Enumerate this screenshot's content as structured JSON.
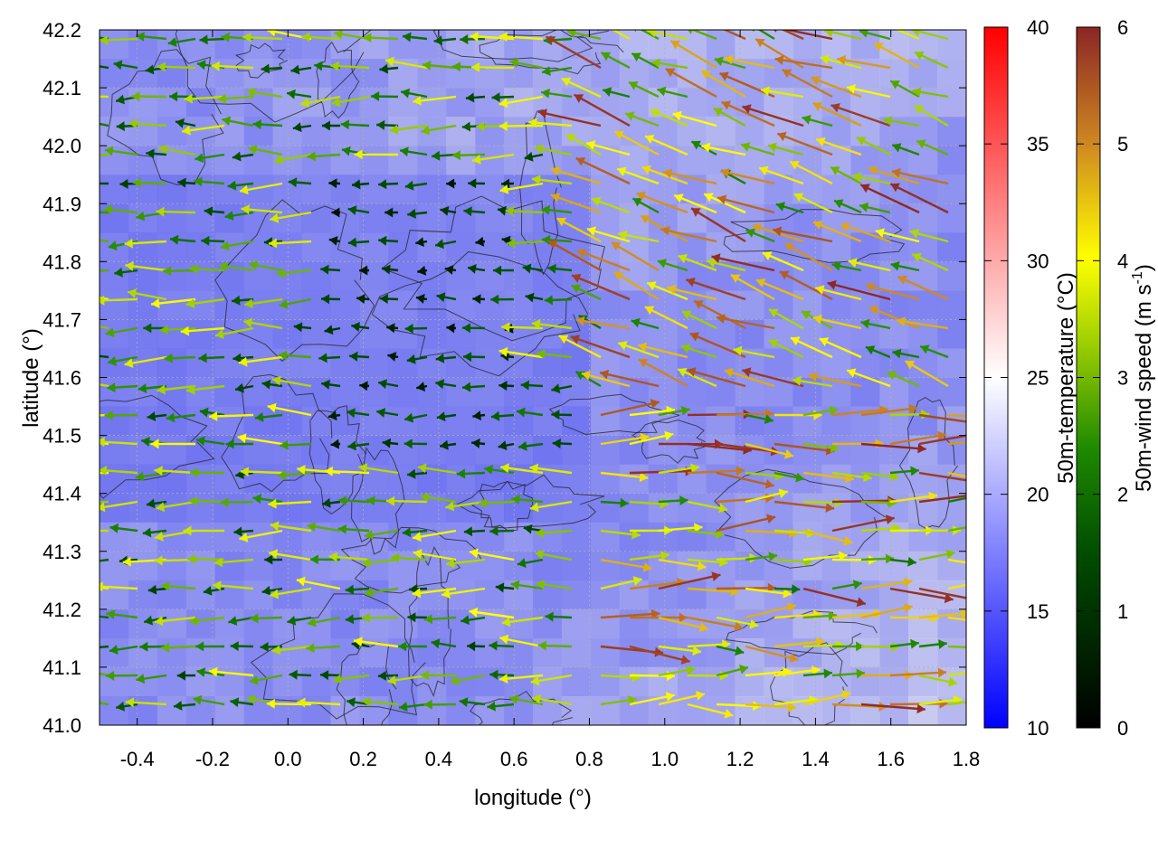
{
  "chart_data": {
    "type": "heatmap",
    "overlays": [
      "vector-field",
      "contour-lines"
    ],
    "xlabel": "longitude (°)",
    "ylabel": "latitude (°)",
    "xlim": [
      -0.5,
      1.8
    ],
    "ylim": [
      41.0,
      42.2
    ],
    "xticks": [
      "-0.4",
      "-0.2",
      "0.0",
      "0.2",
      "0.4",
      "0.6",
      "0.8",
      "1.0",
      "1.2",
      "1.4",
      "1.6",
      "1.8"
    ],
    "xtick_values": [
      -0.4,
      -0.2,
      0.0,
      0.2,
      0.4,
      0.6,
      0.8,
      1.0,
      1.2,
      1.4,
      1.6,
      1.8
    ],
    "yticks": [
      "41.0",
      "41.1",
      "41.2",
      "41.3",
      "41.4",
      "41.5",
      "41.6",
      "41.7",
      "41.8",
      "41.9",
      "42.0",
      "42.1",
      "42.2"
    ],
    "ytick_values": [
      41.0,
      41.1,
      41.2,
      41.3,
      41.4,
      41.5,
      41.6,
      41.7,
      41.8,
      41.9,
      42.0,
      42.1,
      42.2
    ],
    "grid": true,
    "colorbars": [
      {
        "label": "50m-temperature (°C)",
        "range": [
          10,
          40
        ],
        "ticks": [
          "10",
          "15",
          "20",
          "25",
          "30",
          "35",
          "40"
        ],
        "tick_values": [
          10,
          15,
          20,
          25,
          30,
          35,
          40
        ],
        "colors": [
          "#0000ff",
          "#ffffff",
          "#ff0000"
        ]
      },
      {
        "label_main": "50m-wind speed (m s",
        "label_sup": "-1",
        "label_close": ")",
        "range": [
          0,
          6
        ],
        "ticks": [
          "0",
          "1",
          "2",
          "3",
          "4",
          "5",
          "6"
        ],
        "tick_values": [
          0,
          1,
          2,
          3,
          4,
          5,
          6
        ],
        "colors": [
          "#000000",
          "#006400",
          "#008000",
          "#7fbf00",
          "#ffff00",
          "#e09020",
          "#8b2020"
        ]
      }
    ],
    "temperature_field_typical": 17
  }
}
